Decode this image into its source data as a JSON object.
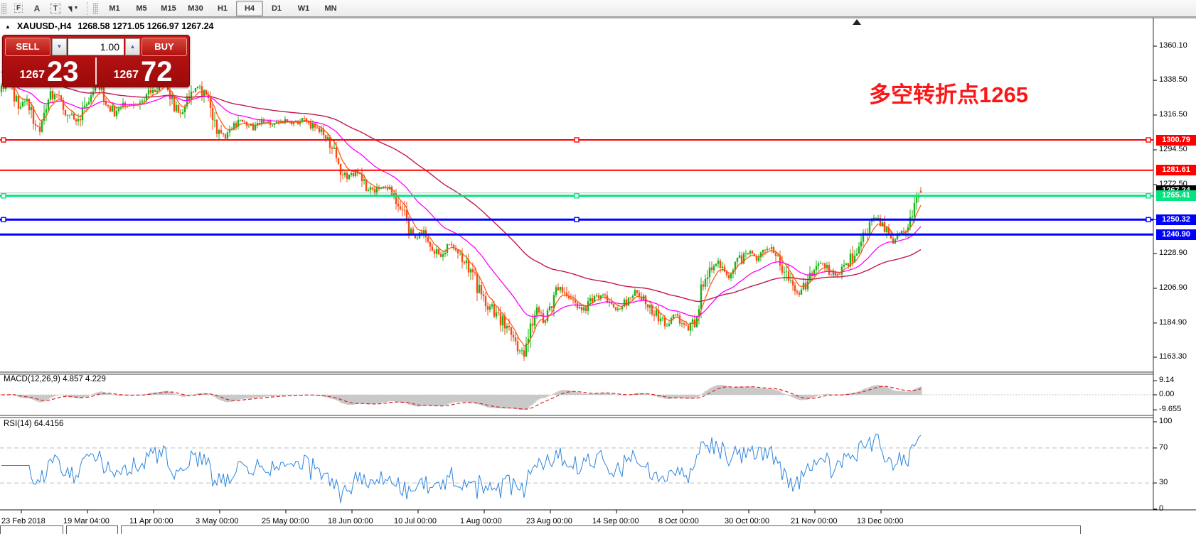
{
  "toolbar": {
    "icons": [
      {
        "name": "templates-grid-icon",
        "glyph": "F",
        "type": "grid"
      },
      {
        "name": "text-label-icon",
        "glyph": "A",
        "type": "plain"
      },
      {
        "name": "text-box-icon",
        "glyph": "T",
        "type": "boxed"
      },
      {
        "name": "cursor-tool-icon",
        "glyph": "",
        "type": "cursor"
      }
    ],
    "dropdown_caret": "▼",
    "timeframes": [
      "M1",
      "M5",
      "M15",
      "M30",
      "H1",
      "H4",
      "D1",
      "W1",
      "MN"
    ],
    "active_timeframe": "H4"
  },
  "chart_header": {
    "collapse_icon": "▲",
    "symbol": "XAUUSD-,H4",
    "ohlc_text": "1268.58 1271.05 1266.97 1267.24"
  },
  "trade_panel": {
    "sell_label": "SELL",
    "buy_label": "BUY",
    "volume": "1.00",
    "stepper_down_icon": "▼",
    "stepper_up_icon": "▲",
    "sell_price_small": "1267",
    "sell_price_big": "23",
    "buy_price_small": "1267",
    "buy_price_big": "72"
  },
  "annotation": {
    "text": "多空转折点1265",
    "color": "#fb1717"
  },
  "macd_panel": {
    "label": "MACD(12,26,9) 4.857 4.229",
    "axis_labels": [
      "9.14",
      "0.00",
      "-9.655"
    ]
  },
  "rsi_panel": {
    "label": "RSI(14) 64.4156",
    "axis_labels": [
      "100",
      "70",
      "30",
      "0"
    ]
  },
  "chart_data": {
    "type": "candlestick",
    "symbol": "XAUUSD-",
    "timeframe": "H4",
    "current_ohlc": {
      "open": 1268.58,
      "high": 1271.05,
      "low": 1266.97,
      "close": 1267.24
    },
    "bid": 1267.23,
    "ask": 1267.72,
    "y_ticks": [
      1360.1,
      1338.5,
      1316.5,
      1294.5,
      1272.5,
      1250.3,
      1228.9,
      1206.9,
      1184.9,
      1163.3
    ],
    "y_range": [
      1163.3,
      1360.1
    ],
    "current_price_label": "1267.24",
    "horizontal_lines": [
      {
        "price": 1300.79,
        "label": "1300.79",
        "color": "#ff0000",
        "width": 2,
        "selected": true
      },
      {
        "price": 1281.61,
        "label": "1281.61",
        "color": "#ff0000",
        "width": 2,
        "selected": false
      },
      {
        "price": 1265.41,
        "label": "1265.41",
        "color": "#00e57e",
        "width": 3,
        "selected": true
      },
      {
        "price": 1250.32,
        "label": "1250.32",
        "color": "#0000ff",
        "width": 3,
        "selected": true
      },
      {
        "price": 1240.9,
        "label": "1240.90",
        "color": "#0000ff",
        "width": 3,
        "selected": false
      }
    ],
    "time_labels": [
      "23 Feb 2018",
      "19 Mar 04:00",
      "11 Apr 00:00",
      "3 May 00:00",
      "25 May 00:00",
      "18 Jun 00:00",
      "10 Jul 00:00",
      "1 Aug 00:00",
      "23 Aug 00:00",
      "14 Sep 00:00",
      "8 Oct 00:00",
      "30 Oct 00:00",
      "21 Nov 00:00",
      "13 Dec 00:00"
    ],
    "indicators": [
      {
        "name": "MACD",
        "params": [
          12,
          26,
          9
        ],
        "current_values": [
          4.857,
          4.229
        ],
        "scale": [
          9.14,
          0.0,
          -9.655
        ]
      },
      {
        "name": "RSI",
        "params": [
          14
        ],
        "current_value": 64.4156,
        "levels": [
          70,
          30
        ],
        "scale": [
          0,
          100
        ]
      }
    ],
    "moving_averages": [
      {
        "name": "fast-ma",
        "period": 7,
        "color": "#ff5207"
      },
      {
        "name": "medium-ma",
        "period": 30,
        "color": "#ff00ff"
      },
      {
        "name": "slow-ma",
        "period": 90,
        "color": "#c2194b"
      }
    ],
    "style": {
      "up_color": "#17b317",
      "down_color": "#fa4a14",
      "rsi_color": "#2e86de",
      "macd_hist_color": "#c9c9c9",
      "macd_signal_color": "#e02020"
    },
    "price_path": [
      [
        0,
        1331
      ],
      [
        12,
        1338
      ],
      [
        25,
        1322
      ],
      [
        40,
        1324
      ],
      [
        55,
        1305
      ],
      [
        68,
        1327
      ],
      [
        82,
        1330
      ],
      [
        95,
        1318
      ],
      [
        108,
        1312
      ],
      [
        122,
        1326
      ],
      [
        136,
        1336
      ],
      [
        150,
        1325
      ],
      [
        162,
        1317
      ],
      [
        175,
        1324
      ],
      [
        190,
        1322
      ],
      [
        205,
        1329
      ],
      [
        220,
        1334
      ],
      [
        232,
        1337
      ],
      [
        243,
        1325
      ],
      [
        254,
        1317
      ],
      [
        266,
        1330
      ],
      [
        278,
        1334
      ],
      [
        292,
        1325
      ],
      [
        305,
        1310
      ],
      [
        315,
        1302
      ],
      [
        328,
        1309
      ],
      [
        342,
        1313
      ],
      [
        356,
        1308
      ],
      [
        370,
        1312
      ],
      [
        384,
        1310
      ],
      [
        398,
        1313
      ],
      [
        412,
        1311
      ],
      [
        426,
        1313
      ],
      [
        440,
        1309
      ],
      [
        455,
        1307
      ],
      [
        468,
        1296
      ],
      [
        478,
        1282
      ],
      [
        490,
        1277
      ],
      [
        502,
        1281
      ],
      [
        514,
        1272
      ],
      [
        526,
        1268
      ],
      [
        538,
        1273
      ],
      [
        550,
        1269
      ],
      [
        560,
        1260
      ],
      [
        572,
        1248
      ],
      [
        584,
        1238
      ],
      [
        596,
        1243
      ],
      [
        608,
        1233
      ],
      [
        620,
        1228
      ],
      [
        632,
        1235
      ],
      [
        645,
        1230
      ],
      [
        658,
        1222
      ],
      [
        670,
        1210
      ],
      [
        682,
        1200
      ],
      [
        695,
        1192
      ],
      [
        708,
        1185
      ],
      [
        720,
        1176
      ],
      [
        730,
        1169
      ],
      [
        737,
        1166
      ],
      [
        745,
        1180
      ],
      [
        755,
        1192
      ],
      [
        765,
        1187
      ],
      [
        775,
        1198
      ],
      [
        785,
        1208
      ],
      [
        797,
        1204
      ],
      [
        810,
        1197
      ],
      [
        822,
        1193
      ],
      [
        834,
        1200
      ],
      [
        846,
        1203
      ],
      [
        858,
        1196
      ],
      [
        870,
        1193
      ],
      [
        882,
        1200
      ],
      [
        894,
        1205
      ],
      [
        906,
        1199
      ],
      [
        916,
        1193
      ],
      [
        928,
        1188
      ],
      [
        938,
        1183
      ],
      [
        948,
        1190
      ],
      [
        958,
        1186
      ],
      [
        968,
        1181
      ],
      [
        978,
        1186
      ],
      [
        985,
        1204
      ],
      [
        995,
        1218
      ],
      [
        1005,
        1224
      ],
      [
        1015,
        1220
      ],
      [
        1025,
        1215
      ],
      [
        1035,
        1222
      ],
      [
        1045,
        1227
      ],
      [
        1055,
        1231
      ],
      [
        1065,
        1225
      ],
      [
        1075,
        1232
      ],
      [
        1085,
        1234
      ],
      [
        1095,
        1228
      ],
      [
        1105,
        1215
      ],
      [
        1115,
        1207
      ],
      [
        1125,
        1204
      ],
      [
        1135,
        1212
      ],
      [
        1145,
        1220
      ],
      [
        1155,
        1225
      ],
      [
        1165,
        1219
      ],
      [
        1175,
        1215
      ],
      [
        1185,
        1220
      ],
      [
        1195,
        1224
      ],
      [
        1205,
        1232
      ],
      [
        1215,
        1242
      ],
      [
        1225,
        1248
      ],
      [
        1233,
        1251
      ],
      [
        1241,
        1246
      ],
      [
        1249,
        1242
      ],
      [
        1257,
        1235
      ],
      [
        1263,
        1240
      ],
      [
        1271,
        1246
      ],
      [
        1279,
        1250
      ],
      [
        1286,
        1259
      ],
      [
        1292,
        1266
      ],
      [
        1297,
        1267.2
      ]
    ]
  }
}
